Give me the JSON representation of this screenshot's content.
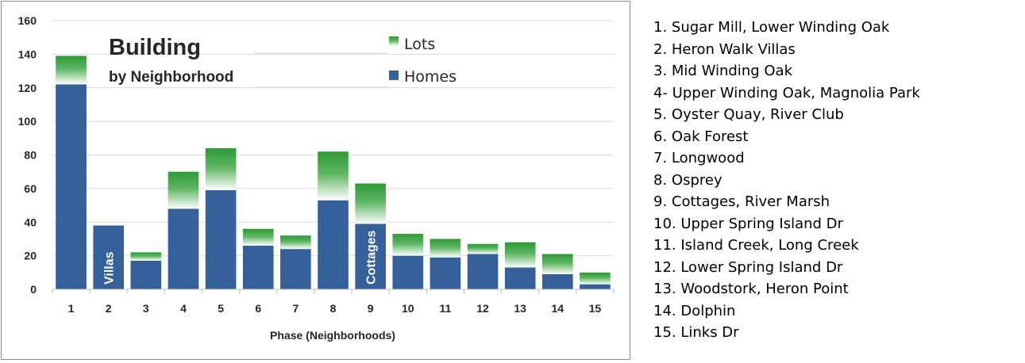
{
  "chart_data": {
    "type": "bar",
    "stacked": true,
    "title": "Building",
    "subtitle": "by Neighborhood",
    "xlabel": "Phase (Neighborhoods)",
    "ylabel": "",
    "ylim": [
      0,
      160
    ],
    "yticks": [
      "0",
      "20",
      "40",
      "60",
      "80",
      "100",
      "120",
      "140",
      "160"
    ],
    "categories": [
      "1",
      "2",
      "3",
      "4",
      "5",
      "6",
      "7",
      "8",
      "9",
      "10",
      "11",
      "12",
      "13",
      "14",
      "15"
    ],
    "grid": true,
    "legend_position": "top-center",
    "series": [
      {
        "name": "Homes",
        "color": "#36609a",
        "values": [
          122,
          38,
          17,
          48,
          59,
          26,
          24,
          53,
          39,
          20,
          19,
          21,
          13,
          9,
          3
        ]
      },
      {
        "name": "Lots",
        "color": "#2e9a36",
        "values": [
          17,
          0,
          5,
          22,
          25,
          10,
          8,
          29,
          24,
          13,
          11,
          6,
          15,
          12,
          7
        ]
      }
    ],
    "bar_labels": [
      {
        "category": "2",
        "text": "Villas"
      },
      {
        "category": "9",
        "text": "Cottages"
      }
    ]
  },
  "neighborhoods": [
    "1. Sugar Mill, Lower Winding Oak",
    "2. Heron Walk Villas",
    "3. Mid Winding Oak",
    "4- Upper Winding Oak, Magnolia Park",
    "5. Oyster Quay, River Club",
    "6. Oak Forest",
    "7. Longwood",
    "8. Osprey",
    "9. Cottages, River Marsh",
    "10. Upper Spring Island Dr",
    "11. Island Creek, Long Creek",
    "12. Lower Spring Island Dr",
    "13. Woodstork, Heron Point",
    "14. Dolphin",
    "15. Links Dr"
  ]
}
